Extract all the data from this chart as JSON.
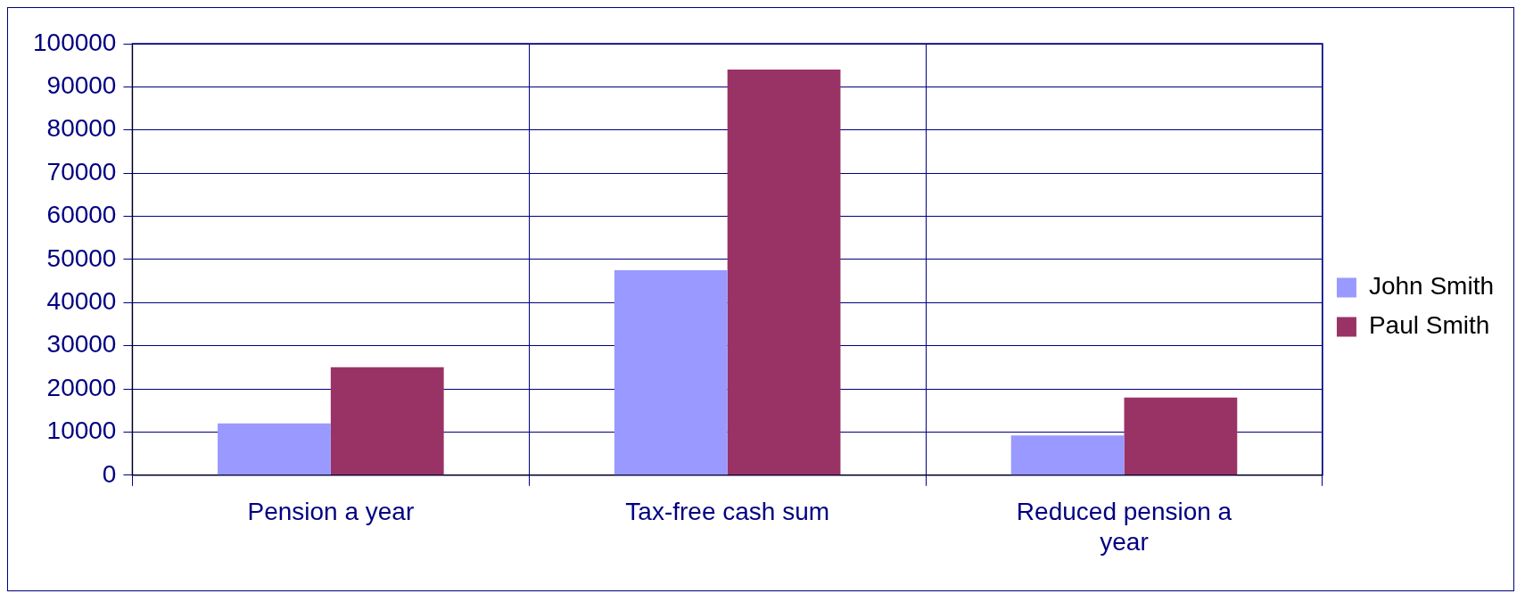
{
  "chart_data": {
    "type": "bar",
    "categories": [
      "Pension a year",
      "Tax-free cash sum",
      "Reduced pension a year"
    ],
    "series": [
      {
        "name": "John Smith",
        "color": "#9999ff",
        "values": [
          12000,
          47500,
          9200
        ]
      },
      {
        "name": "Paul Smith",
        "color": "#993366",
        "values": [
          25000,
          94000,
          18000
        ]
      }
    ],
    "ylim": [
      0,
      100000
    ],
    "yticks": [
      0,
      10000,
      20000,
      30000,
      40000,
      50000,
      60000,
      70000,
      80000,
      90000,
      100000
    ],
    "grid": true,
    "legend": "right"
  }
}
